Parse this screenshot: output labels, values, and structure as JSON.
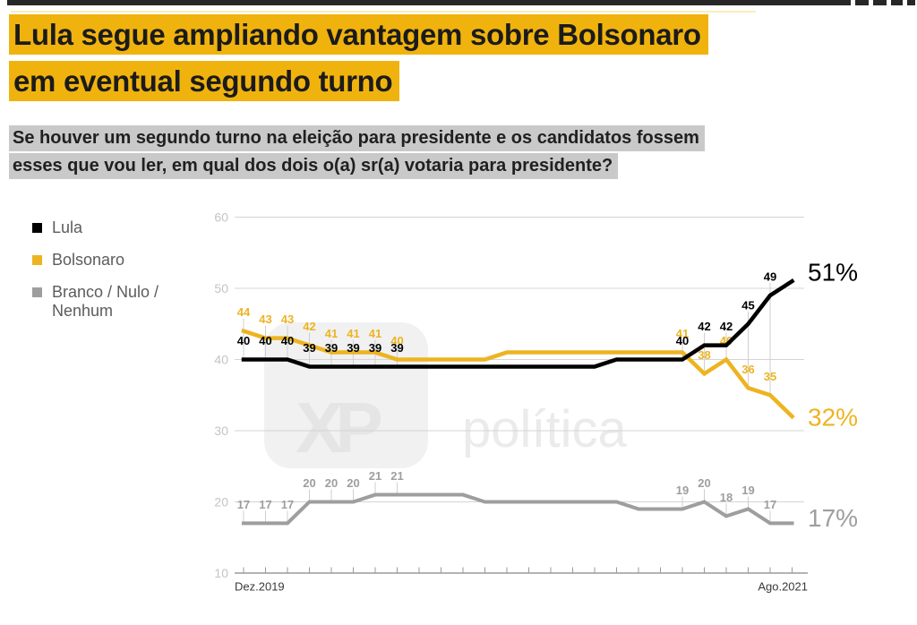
{
  "header": {
    "title": {
      "line1": "Lula segue ampliando vantagem sobre Bolsonaro",
      "line2": "em eventual segundo turno",
      "highlight_color": "#F0B30E"
    },
    "subtitle": {
      "line1": "Se houver um segundo turno na eleição para presidente e os candidatos fossem",
      "line2": "esses que vou ler, em qual dos dois o(a) sr(a) votaria para presidente?",
      "highlight_color": "#C9C9C9"
    }
  },
  "legend": {
    "items": [
      {
        "label": "Lula",
        "color": "#000000"
      },
      {
        "label": "Bolsonaro",
        "color": "#EDB421"
      },
      {
        "label": "Branco / Nulo / Nenhum",
        "color": "#9E9E9E"
      }
    ]
  },
  "watermark": {
    "logo": "XP",
    "text": "política"
  },
  "chart_data": {
    "type": "line",
    "x_axis": {
      "labels": [
        "Dez.2019",
        "Ago.2021"
      ],
      "num_points": 26
    },
    "y_axis": {
      "min": 10,
      "max": 60,
      "ticks": [
        60,
        50,
        40,
        30,
        20,
        10
      ]
    },
    "grid": true,
    "labeled_indices": [
      0,
      1,
      2,
      3,
      4,
      5,
      6,
      7,
      20,
      21,
      22,
      23,
      24
    ],
    "series": [
      {
        "id": "lula",
        "name": "Lula",
        "color": "#000000",
        "end_label": "51%",
        "values": [
          40,
          40,
          40,
          39,
          39,
          39,
          39,
          39,
          39,
          39,
          39,
          39,
          39,
          39,
          39,
          39,
          39,
          40,
          40,
          40,
          40,
          42,
          42,
          45,
          49,
          51
        ]
      },
      {
        "id": "bolsonaro",
        "name": "Bolsonaro",
        "color": "#EDB421",
        "end_label": "32%",
        "values": [
          44,
          43,
          43,
          42,
          41,
          41,
          41,
          40,
          40,
          40,
          40,
          40,
          41,
          41,
          41,
          41,
          41,
          41,
          41,
          41,
          41,
          38,
          40,
          36,
          35,
          32
        ]
      },
      {
        "id": "branco",
        "name": "Branco / Nulo / Nenhum",
        "color": "#9E9E9E",
        "end_label": "17%",
        "values": [
          17,
          17,
          17,
          20,
          20,
          20,
          21,
          21,
          21,
          21,
          21,
          20,
          20,
          20,
          20,
          20,
          20,
          20,
          19,
          19,
          19,
          20,
          18,
          19,
          17,
          17
        ]
      }
    ]
  }
}
